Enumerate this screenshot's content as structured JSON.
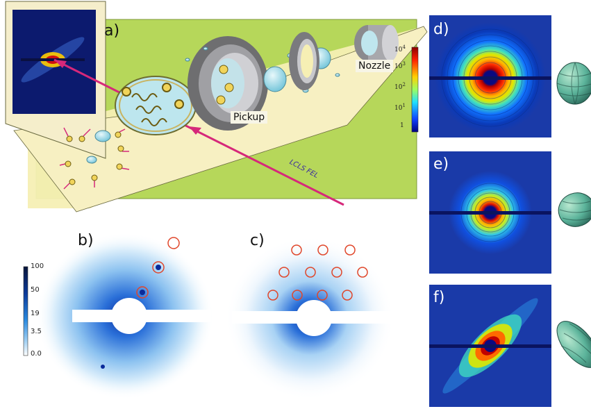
{
  "panels": {
    "a": "a)",
    "b": "b)",
    "c": "c)",
    "d": "d)",
    "e": "e)",
    "f": "f)"
  },
  "schematic": {
    "nozzle_label": "Nozzle",
    "pickup_label": "Pickup",
    "beam_label": "LCLS FEL"
  },
  "colorbar_blue": {
    "ticks": [
      "100",
      "50",
      "19",
      "3.5",
      "0.0"
    ]
  },
  "colorbar_jet": {
    "ticks": [
      "10",
      "10",
      "10",
      "10",
      "10",
      "1"
    ],
    "exponents": [
      "4",
      "3",
      "2",
      "1",
      "",
      ""
    ]
  },
  "colors": {
    "background_green": "#b6d75a",
    "detector_dark": "#0c1a6e",
    "beam": "#d6287a",
    "circle": "#e0462a",
    "droplet": "#a8dde6"
  }
}
